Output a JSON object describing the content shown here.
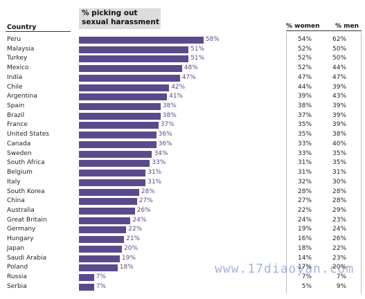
{
  "header": {
    "country_label": "Country",
    "title": "% picking out sexual harassment",
    "women_label": "% women",
    "men_label": "% men"
  },
  "watermark": "www.17diaoyan.com",
  "colors": {
    "bar": "#5b4a8b",
    "label": "#5b4a8b",
    "title_bg": "#dcdcdc"
  },
  "chart_data": {
    "type": "bar",
    "title": "% picking out sexual harassment",
    "categories": [
      "Peru",
      "Malaysia",
      "Turkey",
      "Mexico",
      "India",
      "Chile",
      "Argentina",
      "Spain",
      "Brazil",
      "France",
      "United States",
      "Canada",
      "Sweden",
      "South Africa",
      "Belgium",
      "Italy",
      "South Korea",
      "China",
      "Australia",
      "Great Britain",
      "Germany",
      "Hungary",
      "Japan",
      "Saudi Arabia",
      "Poland",
      "Russia",
      "Serbia"
    ],
    "values": [
      58,
      51,
      51,
      48,
      47,
      42,
      41,
      38,
      38,
      37,
      36,
      36,
      34,
      33,
      31,
      31,
      28,
      27,
      26,
      24,
      22,
      21,
      20,
      19,
      18,
      7,
      7
    ],
    "women": [
      54,
      52,
      52,
      52,
      47,
      44,
      39,
      38,
      37,
      35,
      35,
      33,
      33,
      31,
      31,
      32,
      28,
      27,
      22,
      24,
      19,
      16,
      18,
      14,
      17,
      7,
      5
    ],
    "men": [
      62,
      50,
      50,
      44,
      47,
      39,
      43,
      39,
      39,
      39,
      38,
      40,
      35,
      35,
      31,
      30,
      28,
      28,
      29,
      23,
      24,
      26,
      22,
      23,
      20,
      7,
      9
    ],
    "ylim": [
      0,
      100
    ]
  }
}
